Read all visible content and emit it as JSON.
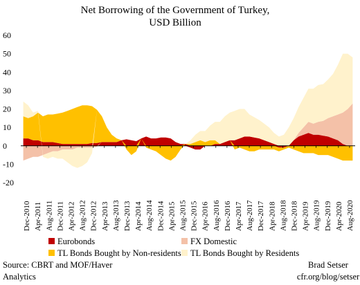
{
  "chart_data": {
    "type": "area",
    "title": "Net Borrowing of the Government of Turkey,",
    "subtitle": "USD Billion",
    "xlabel": "",
    "ylabel": "",
    "ylim": [
      -20,
      60
    ],
    "yticks": [
      -20,
      -10,
      0,
      10,
      20,
      30,
      40,
      50,
      60
    ],
    "grid": false,
    "legend_position": "bottom",
    "x_tick_labels": [
      "Dec-2010",
      "Apr-2011",
      "Aug-2011",
      "Dec-2011",
      "Apr-2012",
      "Aug-2012",
      "Dec-2012",
      "Apr-2013",
      "Aug-2013",
      "Dec-2013",
      "Apr-2014",
      "Aug-2014",
      "Dec-2014",
      "Apr-2015",
      "Aug-2015",
      "Dec-2015",
      "Apr-2016",
      "Aug-2016",
      "Dec-2016",
      "Apr-2017",
      "Aug-2017",
      "Dec-2017",
      "Apr-2018",
      "Aug-2018",
      "Dec-2018",
      "Apr-2019",
      "Aug-2019",
      "Dec-2019",
      "Apr-2020",
      "Aug-2020"
    ],
    "series": [
      {
        "name": "Eurobonds",
        "color": "#c00000",
        "values": [
          4,
          4,
          3,
          3,
          2,
          2,
          2,
          1.5,
          1,
          1,
          1,
          1,
          1,
          1,
          1.5,
          1.5,
          2,
          2,
          2,
          2,
          3,
          3.5,
          3,
          2.5,
          4,
          5,
          4,
          4,
          4.5,
          4.5,
          4,
          2,
          1,
          1,
          -1,
          -2,
          -2,
          0,
          0,
          1,
          1,
          2,
          3,
          3,
          4,
          5,
          5,
          4.5,
          4,
          3,
          2,
          1,
          -1,
          -1,
          0,
          3,
          5,
          6,
          7,
          6,
          6,
          5.5,
          5,
          4,
          3,
          1,
          0,
          0
        ]
      },
      {
        "name": "FX Domestic",
        "color": "#f4c1a8",
        "values": [
          -8,
          -7,
          -6,
          -6,
          -5,
          -4,
          -3,
          -3,
          -2,
          -2,
          -2,
          -1,
          -1,
          -1,
          -1,
          -0.5,
          0,
          0,
          0,
          0,
          0,
          0,
          0,
          0,
          0,
          0,
          0,
          0,
          0,
          0,
          0,
          0,
          0,
          0,
          0,
          0,
          0,
          0,
          0,
          0,
          0,
          0,
          0,
          0,
          0,
          0,
          0,
          0,
          0,
          0,
          0,
          0,
          0,
          0,
          0,
          0,
          2,
          4,
          6,
          6,
          7,
          8,
          10,
          12,
          14,
          17,
          20,
          23
        ]
      },
      {
        "name": "TL Bonds Bought by Non-residents",
        "color": "#ffc000",
        "values": [
          12,
          11,
          13,
          15,
          14,
          15,
          15,
          16,
          17,
          18,
          19,
          20,
          21,
          21,
          20,
          18,
          14,
          8,
          4,
          2,
          0,
          -2,
          -5,
          -3,
          0,
          -1,
          -2,
          -3,
          -5,
          -7,
          -8,
          -6,
          -2,
          0,
          1,
          2,
          3,
          2,
          3,
          2,
          0,
          0,
          0,
          -2,
          -1,
          -2,
          -3,
          -3,
          -2,
          -2,
          -2,
          -2,
          -2,
          -1,
          -1,
          -2,
          -3,
          -4,
          -4,
          -4,
          -5,
          -5,
          -5,
          -6,
          -7,
          -8,
          -8,
          -8
        ]
      },
      {
        "name": "TL Bonds Bought by Residents",
        "color": "#fff2cc",
        "values": [
          8,
          7,
          2,
          1,
          -1,
          -3,
          -3,
          -4,
          -5,
          -7,
          -9,
          -11,
          -10,
          -8,
          -3,
          0,
          0,
          0,
          0,
          0,
          0,
          0,
          0,
          0,
          0,
          0,
          0,
          0,
          0,
          0,
          0,
          0,
          0,
          0,
          2,
          4,
          5,
          6,
          8,
          10,
          12,
          14,
          15,
          16,
          16,
          15,
          12,
          11,
          10,
          9,
          8,
          6,
          5,
          6,
          10,
          12,
          14,
          16,
          18,
          19,
          20,
          20,
          21,
          23,
          27,
          32,
          30,
          25
        ]
      }
    ]
  },
  "footer": {
    "source_line1": "Source: CBRT and MOF/Haver",
    "source_line2": "Analytics",
    "author_line1": "Brad Setser",
    "author_line2": "cfr.org/blog/setser"
  }
}
